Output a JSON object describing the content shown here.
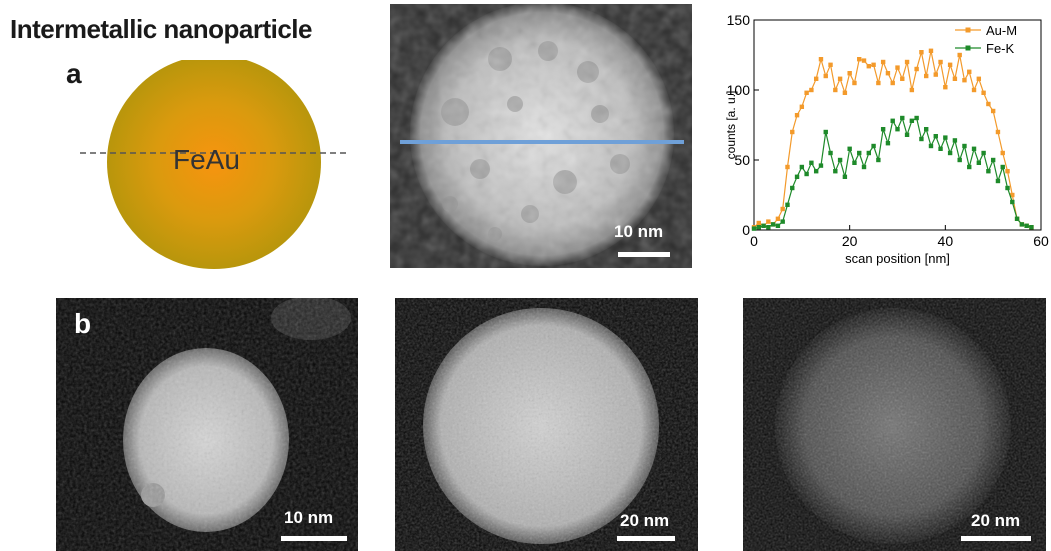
{
  "figure": {
    "title": "Intermetallic nanoparticle",
    "panel_a_label": "a",
    "panel_b_label": "b",
    "particle_label": "FeAu",
    "colors": {
      "particle_outer": "#B8960C",
      "particle_inner": "#F7940F",
      "line_scan": "#6FA0D8"
    }
  },
  "stem_images": {
    "top": {
      "scale_label": "10 nm"
    },
    "bottom": [
      {
        "scale_label": "10 nm"
      },
      {
        "scale_label": "20 nm"
      },
      {
        "scale_label": "20 nm"
      }
    ]
  },
  "chart_data": {
    "type": "line",
    "title": "",
    "xlabel": "scan position [nm]",
    "ylabel": "counts [a. u.]",
    "xlim": [
      0,
      60
    ],
    "ylim": [
      0,
      150
    ],
    "xticks": [
      0,
      20,
      40,
      60
    ],
    "yticks": [
      0,
      50,
      100,
      150
    ],
    "legend_position": "top-right",
    "series": [
      {
        "name": "Au-M",
        "color": "#F39A2B",
        "x": [
          0,
          1,
          2,
          3,
          4,
          5,
          6,
          7,
          8,
          9,
          10,
          11,
          12,
          13,
          14,
          15,
          16,
          17,
          18,
          19,
          20,
          21,
          22,
          23,
          24,
          25,
          26,
          27,
          28,
          29,
          30,
          31,
          32,
          33,
          34,
          35,
          36,
          37,
          38,
          39,
          40,
          41,
          42,
          43,
          44,
          45,
          46,
          47,
          48,
          49,
          50,
          51,
          52,
          53,
          54,
          55,
          56,
          57,
          58
        ],
        "values": [
          2,
          5,
          3,
          6,
          4,
          8,
          15,
          45,
          70,
          82,
          88,
          98,
          100,
          108,
          122,
          110,
          118,
          100,
          108,
          98,
          112,
          105,
          122,
          121,
          117,
          118,
          105,
          120,
          112,
          105,
          116,
          108,
          120,
          100,
          115,
          127,
          110,
          128,
          111,
          120,
          102,
          118,
          108,
          125,
          107,
          113,
          100,
          108,
          98,
          90,
          85,
          70,
          55,
          42,
          25,
          8,
          4,
          3,
          2
        ]
      },
      {
        "name": "Fe-K",
        "color": "#1E8A2A",
        "x": [
          0,
          1,
          2,
          3,
          4,
          5,
          6,
          7,
          8,
          9,
          10,
          11,
          12,
          13,
          14,
          15,
          16,
          17,
          18,
          19,
          20,
          21,
          22,
          23,
          24,
          25,
          26,
          27,
          28,
          29,
          30,
          31,
          32,
          33,
          34,
          35,
          36,
          37,
          38,
          39,
          40,
          41,
          42,
          43,
          44,
          45,
          46,
          47,
          48,
          49,
          50,
          51,
          52,
          53,
          54,
          55,
          56,
          57,
          58
        ],
        "values": [
          1,
          2,
          3,
          2,
          4,
          3,
          6,
          18,
          30,
          38,
          45,
          40,
          48,
          42,
          46,
          70,
          55,
          42,
          50,
          38,
          58,
          48,
          55,
          45,
          55,
          60,
          50,
          72,
          62,
          78,
          72,
          80,
          68,
          78,
          80,
          65,
          72,
          60,
          67,
          58,
          66,
          55,
          64,
          50,
          60,
          45,
          58,
          48,
          55,
          42,
          50,
          35,
          45,
          30,
          20,
          8,
          4,
          3,
          2
        ]
      }
    ]
  }
}
